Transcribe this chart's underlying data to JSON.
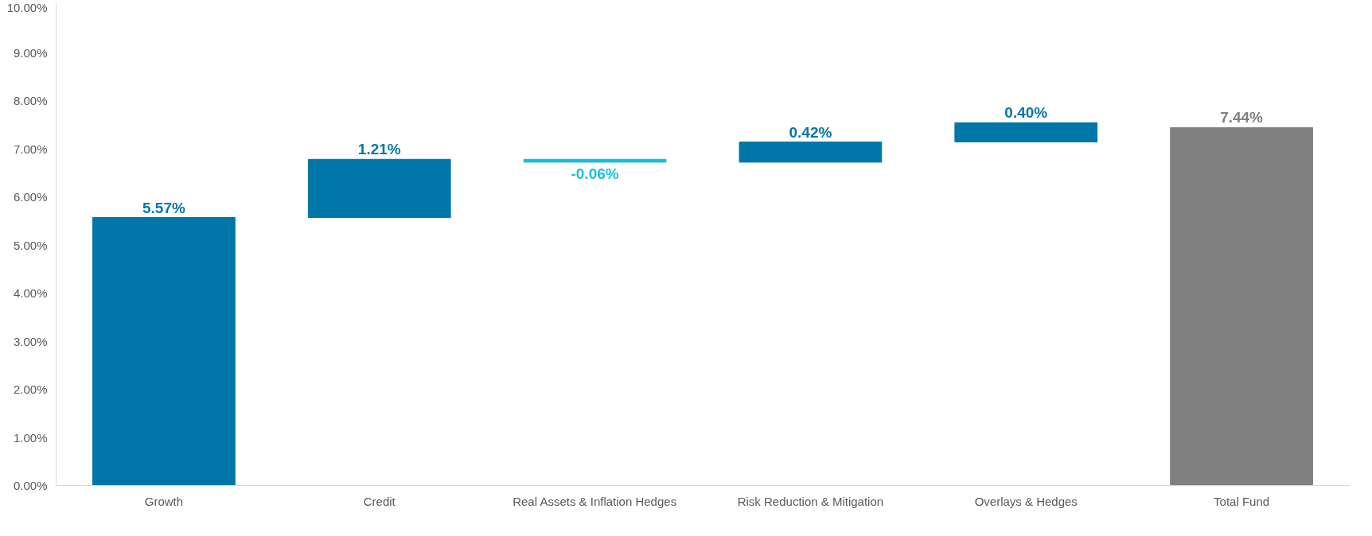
{
  "chart_data": {
    "type": "bar",
    "categories": [
      "Growth",
      "Credit",
      "Real Assets & Inflation Hedges",
      "Risk Reduction & Mitigation",
      "Overlays & Hedges",
      "Total Fund"
    ],
    "values": [
      5.57,
      1.21,
      -0.06,
      0.42,
      0.4,
      7.44
    ],
    "base": [
      0,
      5.57,
      6.78,
      6.72,
      7.14,
      0
    ],
    "colors": [
      "#0077a8",
      "#0077a8",
      "#17bfdf",
      "#0077a8",
      "#0077a8",
      "#808080"
    ],
    "value_labels": [
      "5.57%",
      "1.21%",
      "-0.06%",
      "0.42%",
      "0.40%",
      "7.44%"
    ],
    "ylim": [
      0,
      10
    ],
    "yticks": [
      {
        "value": 0,
        "label": "0.00%"
      },
      {
        "value": 1,
        "label": "1.00%"
      },
      {
        "value": 2,
        "label": "2.00%"
      },
      {
        "value": 3,
        "label": "3.00%"
      },
      {
        "value": 4,
        "label": "4.00%"
      },
      {
        "value": 5,
        "label": "5.00%"
      },
      {
        "value": 6,
        "label": "6.00%"
      },
      {
        "value": 7,
        "label": "7.00%"
      },
      {
        "value": 8,
        "label": "8.00%"
      },
      {
        "value": 9,
        "label": "9.00%"
      },
      {
        "value": 10,
        "label": "10.00%"
      }
    ],
    "grid": false
  }
}
